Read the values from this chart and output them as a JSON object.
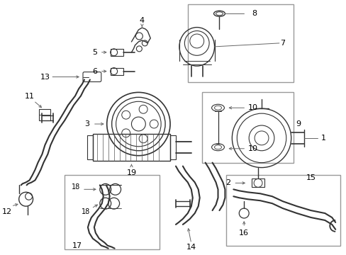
{
  "bg_color": "#ffffff",
  "fig_width": 4.89,
  "fig_height": 3.6,
  "dpi": 100,
  "line_color": "#333333",
  "label_color": "#000000",
  "box_color": "#888888",
  "arrow_color": "#666666"
}
